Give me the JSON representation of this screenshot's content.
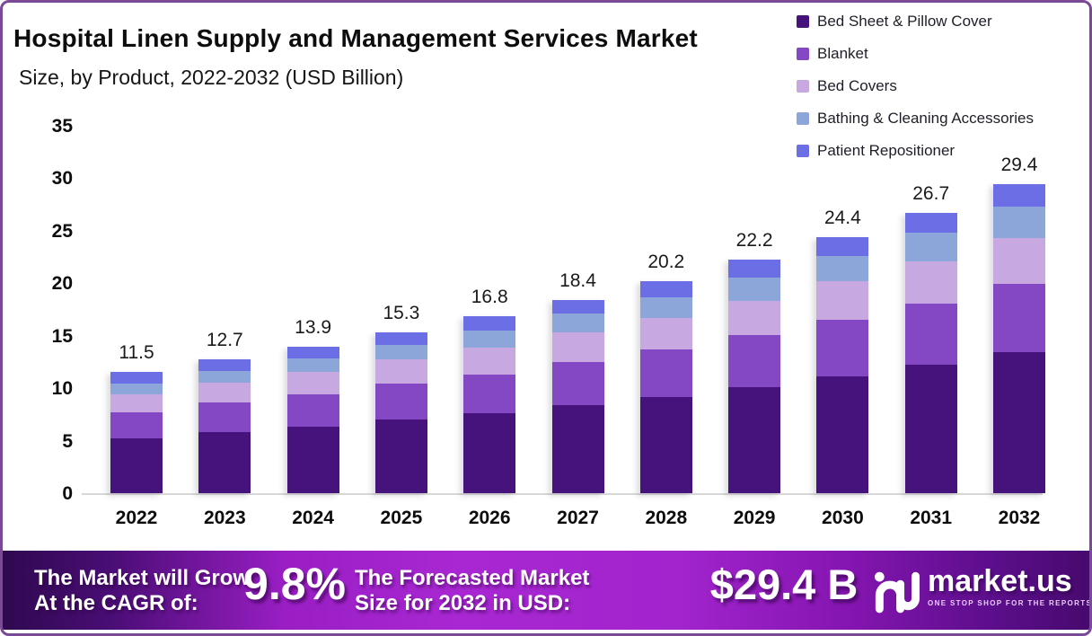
{
  "title": "Hospital Linen Supply and Management Services Market",
  "subtitle": "Size, by Product, 2022-2032 (USD Billion)",
  "chart_data": {
    "type": "bar",
    "stacked": true,
    "title": "Hospital Linen Supply and Management Services Market Size, by Product, 2022-2032 (USD Billion)",
    "categories": [
      "2022",
      "2023",
      "2024",
      "2025",
      "2026",
      "2027",
      "2028",
      "2029",
      "2030",
      "2031",
      "2032"
    ],
    "series": [
      {
        "name": "Bed Sheet & Pillow Cover",
        "color": "#45137b",
        "values": [
          5.2,
          5.8,
          6.3,
          7.0,
          7.6,
          8.4,
          9.2,
          10.1,
          11.1,
          12.2,
          13.4
        ]
      },
      {
        "name": "Blanket",
        "color": "#8548c4",
        "values": [
          2.5,
          2.8,
          3.1,
          3.4,
          3.7,
          4.1,
          4.5,
          4.9,
          5.4,
          5.9,
          6.5
        ]
      },
      {
        "name": "Bed Covers",
        "color": "#c8a8e0",
        "values": [
          1.7,
          1.9,
          2.1,
          2.3,
          2.5,
          2.8,
          3.0,
          3.3,
          3.7,
          4.0,
          4.4
        ]
      },
      {
        "name": "Bathing & Cleaning Accessories",
        "color": "#8ca6d9",
        "values": [
          1.0,
          1.1,
          1.3,
          1.4,
          1.6,
          1.8,
          2.0,
          2.2,
          2.4,
          2.7,
          3.0
        ]
      },
      {
        "name": "Patient Repositioner",
        "color": "#6b6ee5",
        "values": [
          1.1,
          1.1,
          1.1,
          1.2,
          1.4,
          1.3,
          1.5,
          1.7,
          1.8,
          1.9,
          2.1
        ]
      }
    ],
    "totals": [
      11.5,
      12.7,
      13.9,
      15.3,
      16.8,
      18.4,
      20.2,
      22.2,
      24.4,
      26.7,
      29.4
    ],
    "xlabel": "",
    "ylabel": "",
    "ylim": [
      0,
      35
    ],
    "yticks": [
      0,
      5,
      10,
      15,
      20,
      25,
      30,
      35
    ],
    "grid": false,
    "legend_position": "top-right"
  },
  "footer": {
    "growth_label_line1": "The Market will Grow",
    "growth_label_line2": "At the CAGR of:",
    "growth_value": "9.8%",
    "forecast_label_line1": "The Forecasted Market",
    "forecast_label_line2": "Size for 2032 in USD:",
    "forecast_value": "$29.4 B",
    "brand_name": "market.us",
    "brand_tagline": "ONE STOP SHOP FOR THE REPORTS"
  },
  "colors": {
    "page_border": "#7a4a97",
    "axis_line": "#d8d8d8",
    "banner_bright": "#a827d2",
    "banner_dark_left": "#2f0950",
    "banner_dark_right": "#470a6e",
    "text": "#0d0d0f"
  }
}
